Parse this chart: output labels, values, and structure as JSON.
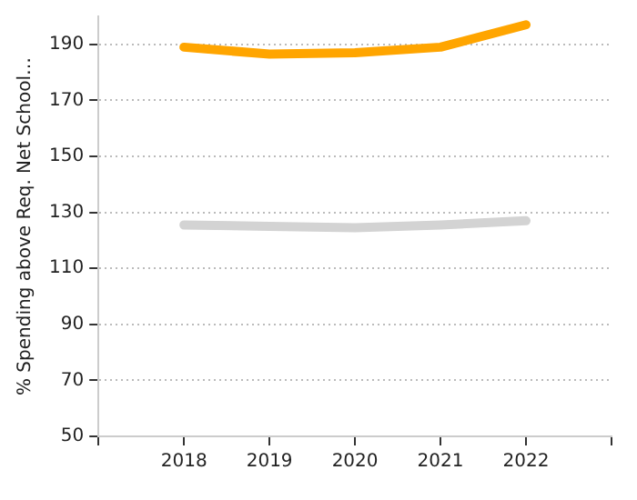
{
  "chart_data": {
    "type": "line",
    "ylabel": "% Spending above Req. Net School…",
    "x": [
      2018,
      2019,
      2020,
      2021,
      2022
    ],
    "series": [
      {
        "color": "#ffa500",
        "values": [
          189,
          186.5,
          187,
          189,
          197
        ]
      },
      {
        "color": "#d3d3d3",
        "values": [
          125.5,
          125,
          124.5,
          125.5,
          127
        ]
      }
    ],
    "xlim": [
      2017,
      2023
    ],
    "xticks": [
      {
        "value": 2017,
        "label": null
      },
      2018,
      2019,
      2020,
      2021,
      2022,
      {
        "value": 2023,
        "label": null
      }
    ],
    "ylim": [
      50,
      200
    ],
    "yticks": [
      50,
      70,
      90,
      110,
      130,
      150,
      170,
      190
    ],
    "grid": "y",
    "legend": false,
    "marker": "none"
  }
}
